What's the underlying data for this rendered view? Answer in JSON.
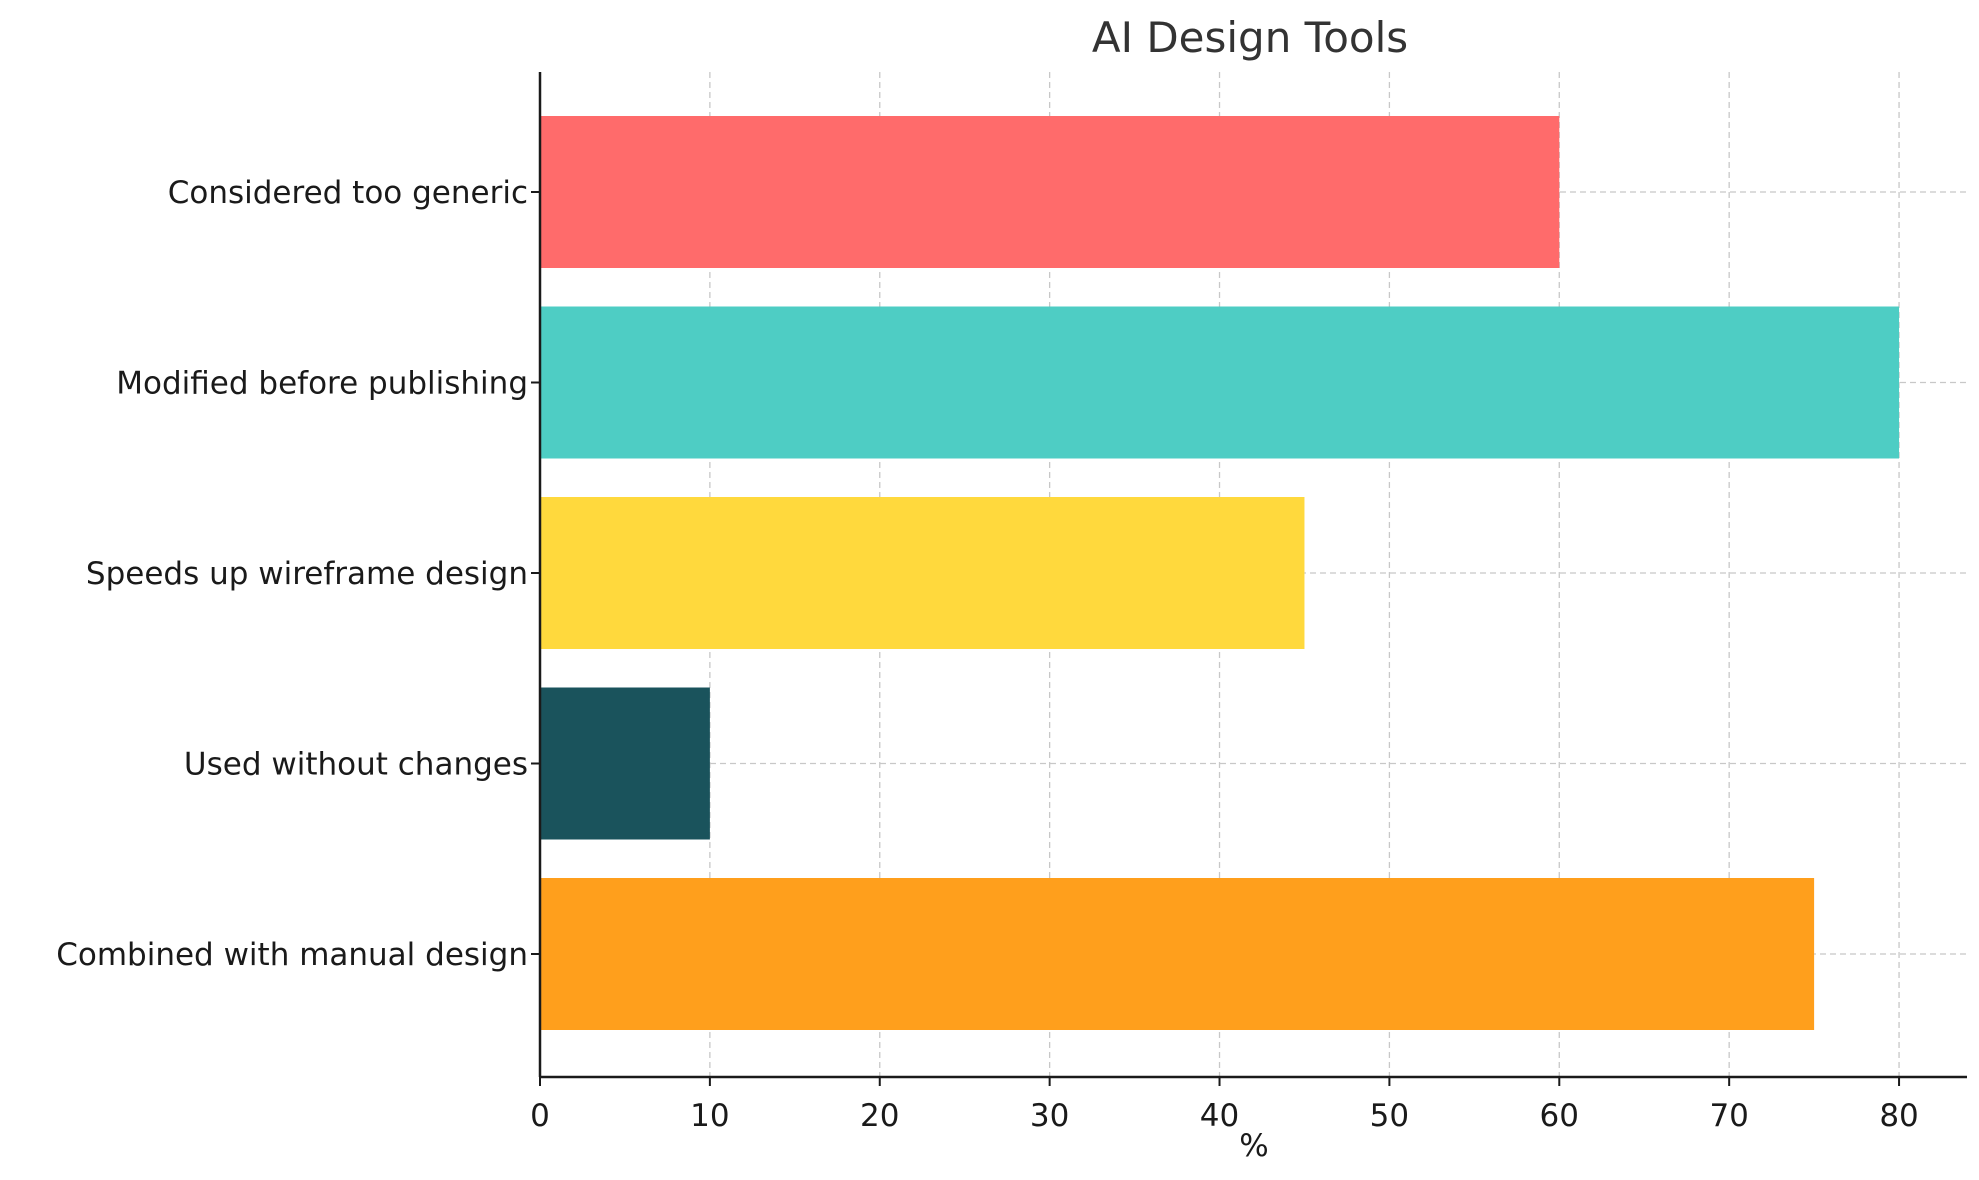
{
  "chart_data": {
    "type": "bar",
    "orientation": "horizontal",
    "title": "AI Design Tools",
    "xlabel": "%",
    "ylabel": "",
    "categories": [
      "Considered too generic",
      "Modified before publishing",
      "Speeds up wireframe design",
      "Used without changes",
      "Combined with manual design"
    ],
    "values": [
      60,
      80,
      45,
      10,
      75
    ],
    "colors": [
      "#ff6b6b",
      "#4ecdc4",
      "#ffd93d",
      "#1a535c",
      "#ff9f1c"
    ],
    "xlim": [
      0,
      84
    ],
    "xticks": [
      0,
      10,
      20,
      30,
      40,
      50,
      60,
      70,
      80
    ],
    "grid": true
  }
}
